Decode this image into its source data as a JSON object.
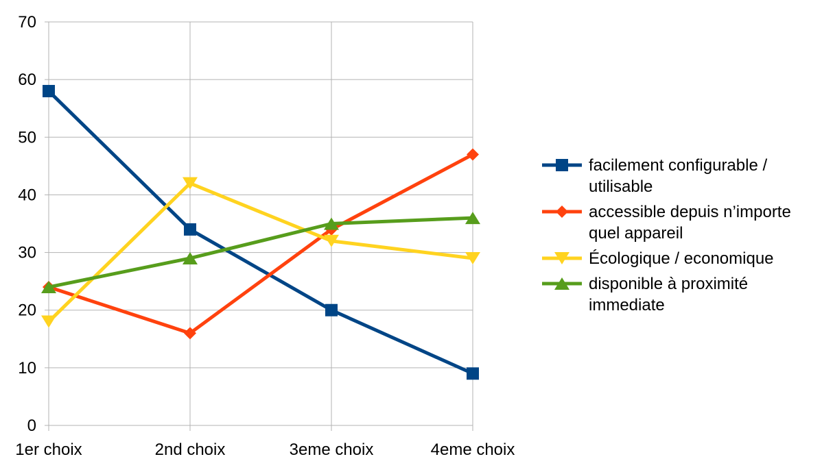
{
  "chart_data": {
    "type": "line",
    "title": "",
    "xlabel": "",
    "ylabel": "",
    "categories": [
      "1er choix",
      "2nd choix",
      "3eme choix",
      "4eme choix"
    ],
    "ylim": [
      0,
      70
    ],
    "yticks": [
      0,
      10,
      20,
      30,
      40,
      50,
      60,
      70
    ],
    "grid": true,
    "legend_position": "right",
    "series": [
      {
        "name": "facilement configurable / utilisable",
        "name_lines": [
          "facilement configurable /",
          "utilisable"
        ],
        "values": [
          58,
          34,
          20,
          9
        ],
        "color": "#004586",
        "marker": "square"
      },
      {
        "name": "accessible depuis n’importe quel appareil",
        "name_lines": [
          "accessible depuis n’importe",
          "quel appareil"
        ],
        "values": [
          24,
          16,
          34,
          47
        ],
        "color": "#ff420e",
        "marker": "diamond"
      },
      {
        "name": "Écologique / economique",
        "name_lines": [
          "Écologique / economique"
        ],
        "values": [
          18,
          42,
          32,
          29
        ],
        "color": "#ffd320",
        "marker": "triangle-down"
      },
      {
        "name": "disponible à proximité immediate",
        "name_lines": [
          "disponible à proximité",
          "immediate"
        ],
        "values": [
          24,
          29,
          35,
          36
        ],
        "color": "#579d1c",
        "marker": "triangle-up"
      }
    ]
  }
}
